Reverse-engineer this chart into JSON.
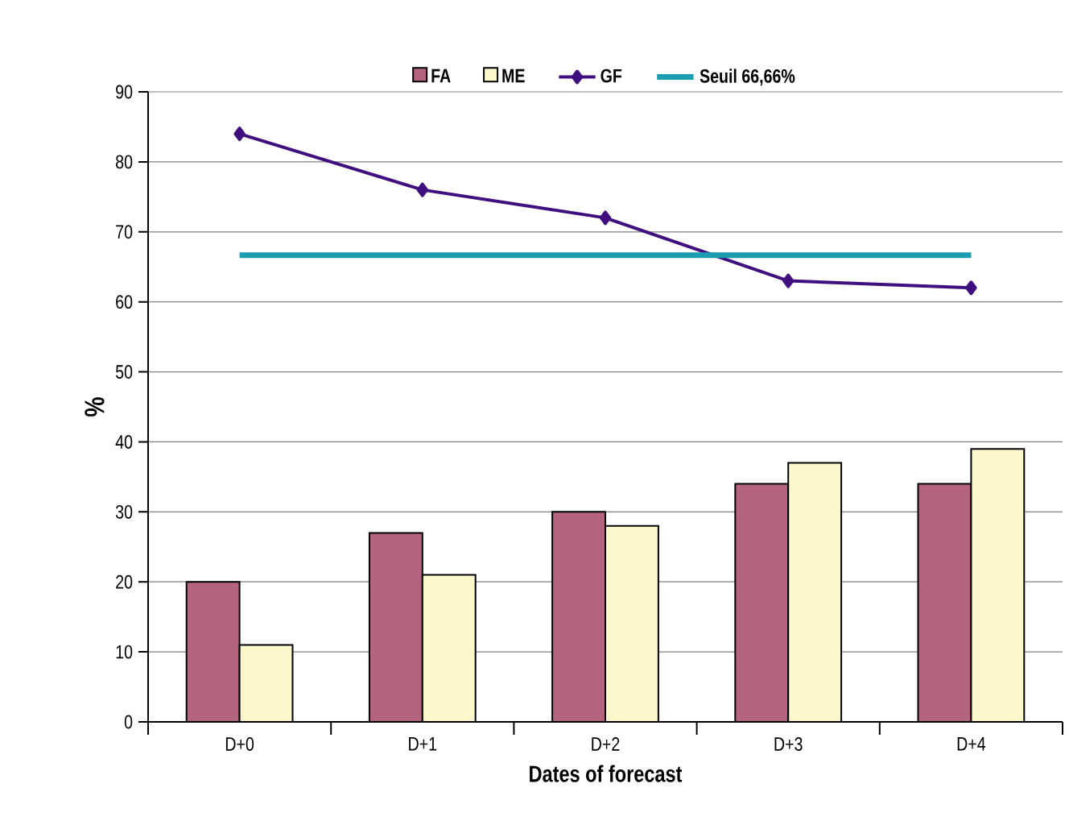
{
  "chart_data": {
    "type": "bar",
    "xlabel": "Dates of forecast",
    "ylabel": "%",
    "categories": [
      "D+0",
      "D+1",
      "D+2",
      "D+3",
      "D+4"
    ],
    "series": [
      {
        "name": "FA",
        "color": "#b5647f",
        "values": [
          20,
          27,
          30,
          34,
          34
        ]
      },
      {
        "name": "ME",
        "color": "#fdf7cc",
        "values": [
          11,
          21,
          28,
          37,
          39
        ]
      },
      {
        "name": "GF",
        "type": "line",
        "marker": "diamond",
        "color": "#3f0f7f",
        "values": [
          84,
          76,
          72,
          63,
          62
        ]
      },
      {
        "name": "Seuil 66,66%",
        "type": "line",
        "marker": "none",
        "color": "#1a9db0",
        "values": [
          66.66,
          66.66,
          66.66,
          66.66,
          66.66
        ]
      }
    ],
    "ylim": [
      0,
      90
    ],
    "yticks": [
      0,
      10,
      20,
      30,
      40,
      50,
      60,
      70,
      80,
      90
    ],
    "grid": "y",
    "legend": "top"
  }
}
